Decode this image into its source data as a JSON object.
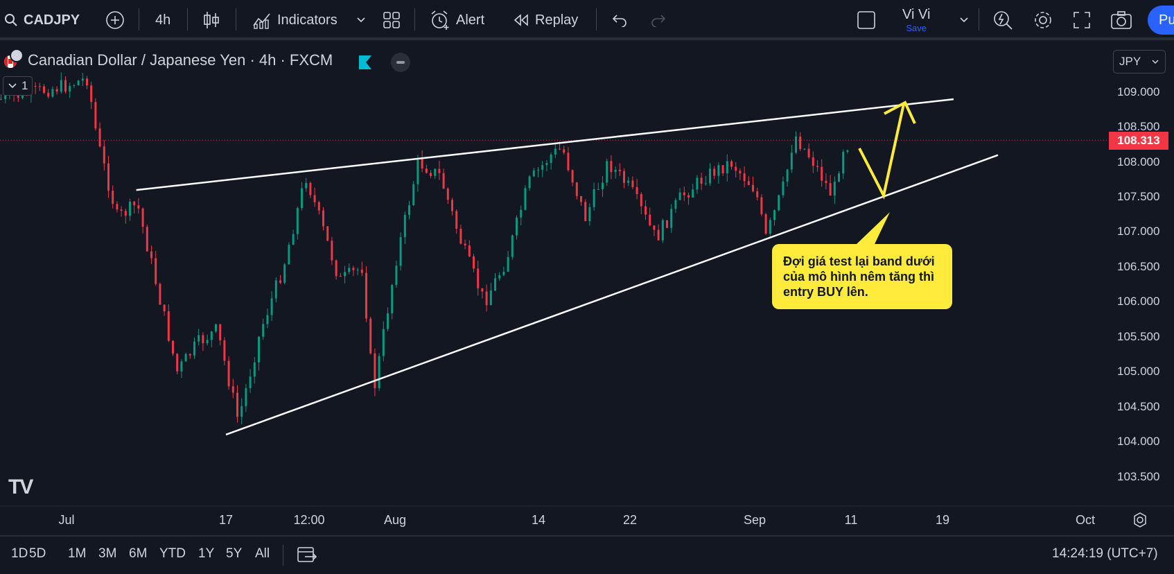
{
  "toolbar": {
    "symbol": "CADJPY",
    "interval": "4h",
    "indicators_label": "Indicators",
    "alert_label": "Alert",
    "replay_label": "Replay",
    "layout_name": "Vi Vi",
    "save_label": "Save",
    "publish_label": "Pu"
  },
  "legend": {
    "title": "Canadian Dollar / Japanese Yen · 4h · FXCM",
    "indicator_count": "1"
  },
  "price_axis": {
    "currency": "JPY",
    "labels": [
      "109.000",
      "108.500",
      "108.000",
      "107.500",
      "107.000",
      "106.500",
      "106.000",
      "105.500",
      "105.000",
      "104.500",
      "104.000",
      "103.500"
    ],
    "current_price": "108.313"
  },
  "time_axis": {
    "labels": [
      "Jul",
      "17",
      "12:00",
      "Aug",
      "14",
      "22",
      "Sep",
      "11",
      "19",
      "Oct"
    ]
  },
  "bottom_bar": {
    "ranges": [
      "1D",
      "5D",
      "1M",
      "3M",
      "6M",
      "YTD",
      "1Y",
      "5Y",
      "All"
    ],
    "clock": "14:24:19 (UTC+7)"
  },
  "annotation": {
    "text": "Đợi giá test lại band dưới của mô hình nêm tăng thì entry BUY lên."
  },
  "chart_data": {
    "type": "candlestick",
    "symbol": "CADJPY",
    "timeframe": "4h",
    "ylim": [
      103.3,
      109.4
    ],
    "close_path": [
      {
        "date": "Jun 27",
        "price": 108.9
      },
      {
        "date": "Jul 1",
        "price": 109.1
      },
      {
        "date": "Jul 3",
        "price": 109.2
      },
      {
        "date": "Jul 4",
        "price": 108.3
      },
      {
        "date": "Jul 6",
        "price": 107.2
      },
      {
        "date": "Jul 8",
        "price": 107.4
      },
      {
        "date": "Jul 10",
        "price": 106.2
      },
      {
        "date": "Jul 12",
        "price": 105.0
      },
      {
        "date": "Jul 14",
        "price": 105.4
      },
      {
        "date": "Jul 16",
        "price": 105.6
      },
      {
        "date": "Jul 18",
        "price": 104.3
      },
      {
        "date": "Jul 20",
        "price": 105.6
      },
      {
        "date": "Jul 22",
        "price": 106.5
      },
      {
        "date": "Jul 24",
        "price": 107.8
      },
      {
        "date": "Jul 25",
        "price": 107.3
      },
      {
        "date": "Jul 27",
        "price": 106.3
      },
      {
        "date": "Jul 29",
        "price": 106.5
      },
      {
        "date": "Jul 30",
        "price": 104.7
      },
      {
        "date": "Aug 1",
        "price": 106.6
      },
      {
        "date": "Aug 3",
        "price": 108.0
      },
      {
        "date": "Aug 5",
        "price": 107.8
      },
      {
        "date": "Aug 7",
        "price": 106.8
      },
      {
        "date": "Aug 9",
        "price": 106.0
      },
      {
        "date": "Aug 11",
        "price": 106.6
      },
      {
        "date": "Aug 13",
        "price": 107.7
      },
      {
        "date": "Aug 15",
        "price": 108.1
      },
      {
        "date": "Aug 16",
        "price": 108.2
      },
      {
        "date": "Aug 18",
        "price": 107.2
      },
      {
        "date": "Aug 20",
        "price": 108.0
      },
      {
        "date": "Aug 22",
        "price": 107.6
      },
      {
        "date": "Aug 24",
        "price": 106.9
      },
      {
        "date": "Aug 26",
        "price": 107.5
      },
      {
        "date": "Aug 28",
        "price": 107.8
      },
      {
        "date": "Aug 30",
        "price": 108.0
      },
      {
        "date": "Sep 1",
        "price": 107.6
      },
      {
        "date": "Sep 2",
        "price": 106.9
      },
      {
        "date": "Sep 4",
        "price": 107.7
      },
      {
        "date": "Sep 5",
        "price": 108.4
      },
      {
        "date": "Sep 7",
        "price": 108.0
      },
      {
        "date": "Sep 9",
        "price": 107.5
      },
      {
        "date": "Sep 10",
        "price": 108.2
      },
      {
        "date": "Sep 11",
        "price": 108.313
      }
    ],
    "drawings": [
      {
        "name": "wedge-upper-line",
        "from": {
          "date": "Jul 8",
          "price": 107.6
        },
        "to": {
          "date": "Sep 20",
          "price": 108.9
        }
      },
      {
        "name": "wedge-lower-line",
        "from": {
          "date": "Jul 17",
          "price": 104.1
        },
        "to": {
          "date": "Sep 24",
          "price": 108.1
        }
      }
    ]
  }
}
